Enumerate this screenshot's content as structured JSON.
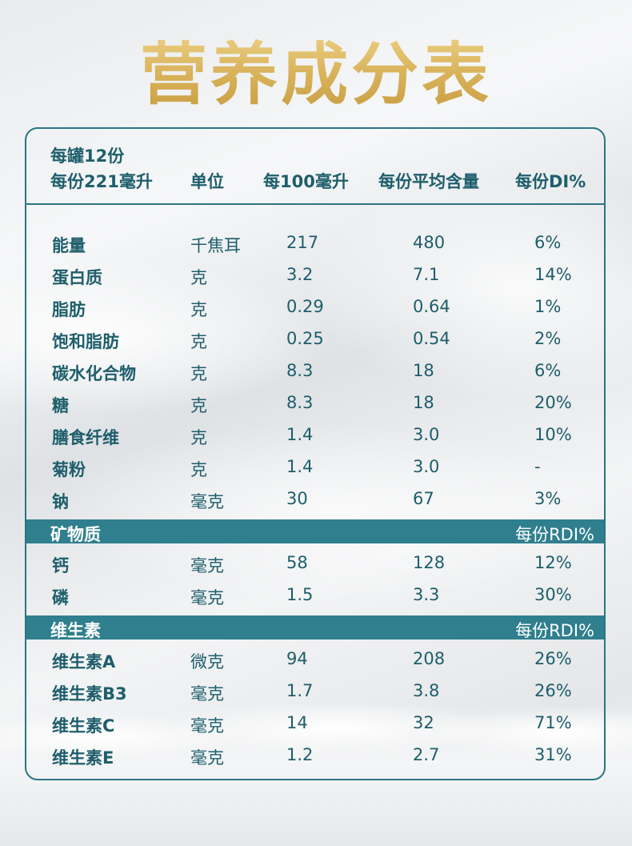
{
  "title": "营养成分表",
  "header": {
    "servings_line": "每罐12份",
    "serving_size": "每份221毫升",
    "col_unit": "单位",
    "col_per100": "每100毫升",
    "col_avg": "每份平均含量",
    "col_di": "每份DI%"
  },
  "nutrients": [
    {
      "name": "能量",
      "unit": "千焦耳",
      "per100": "217",
      "avg": "480",
      "di": "6%"
    },
    {
      "name": "蛋白质",
      "unit": "克",
      "per100": "3.2",
      "avg": "7.1",
      "di": "14%"
    },
    {
      "name": "脂肪",
      "unit": "克",
      "per100": "0.29",
      "avg": "0.64",
      "di": "1%"
    },
    {
      "name": "饱和脂肪",
      "unit": "克",
      "per100": "0.25",
      "avg": "0.54",
      "di": "2%"
    },
    {
      "name": "碳水化合物",
      "unit": "克",
      "per100": "8.3",
      "avg": "18",
      "di": "6%"
    },
    {
      "name": "糖",
      "unit": "克",
      "per100": "8.3",
      "avg": "18",
      "di": "20%"
    },
    {
      "name": "膳食纤维",
      "unit": "克",
      "per100": "1.4",
      "avg": "3.0",
      "di": "10%"
    },
    {
      "name": "菊粉",
      "unit": "克",
      "per100": "1.4",
      "avg": "3.0",
      "di": "-"
    },
    {
      "name": "钠",
      "unit": "毫克",
      "per100": "30",
      "avg": "67",
      "di": "3%"
    }
  ],
  "minerals": {
    "section_label": "矿物质",
    "rdi_label": "每份RDI%",
    "rows": [
      {
        "name": "钙",
        "unit": "毫克",
        "per100": "58",
        "avg": "128",
        "di": "12%"
      },
      {
        "name": "磷",
        "unit": "毫克",
        "per100": "1.5",
        "avg": "3.3",
        "di": "30%"
      }
    ]
  },
  "vitamins": {
    "section_label": "维生素",
    "rdi_label": "每份RDI%",
    "rows": [
      {
        "name": "维生素A",
        "unit": "微克",
        "per100": "94",
        "avg": "208",
        "di": "26%"
      },
      {
        "name": "维生素B3",
        "unit": "毫克",
        "per100": "1.7",
        "avg": "3.8",
        "di": "26%"
      },
      {
        "name": "维生素C",
        "unit": "毫克",
        "per100": "14",
        "avg": "32",
        "di": "71%"
      },
      {
        "name": "维生素E",
        "unit": "毫克",
        "per100": "1.2",
        "avg": "2.7",
        "di": "31%"
      }
    ]
  },
  "colors": {
    "accent_teal": "#2f7f8e",
    "text_teal": "#1e5e6b",
    "title_gold": "#d9b25a"
  }
}
